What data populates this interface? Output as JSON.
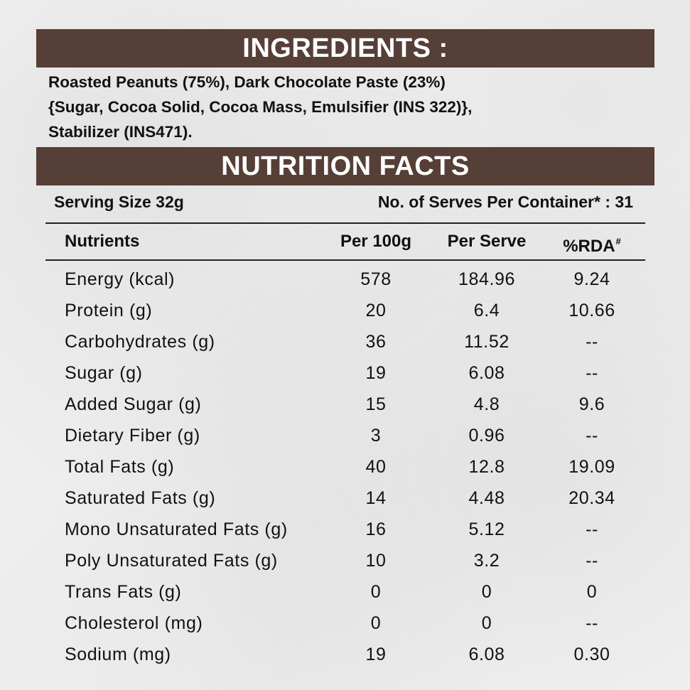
{
  "ingredients": {
    "heading": "INGREDIENTS :",
    "lines": [
      "Roasted Peanuts (75%), Dark Chocolate Paste (23%)",
      "{Sugar, Cocoa Solid, Cocoa Mass, Emulsifier (INS 322)},",
      "Stabilizer (INS471)."
    ]
  },
  "nutrition": {
    "heading": "NUTRITION FACTS",
    "serving_size": "Serving Size 32g",
    "serves_per_container": "No. of Serves Per Container* : 31",
    "columns": {
      "nutrient": "Nutrients",
      "per_100g": "Per 100g",
      "per_serve": "Per Serve",
      "rda": "%RDA",
      "rda_mark": "#"
    },
    "rows": [
      {
        "name": "Energy (kcal)",
        "per_100g": "578",
        "per_serve": "184.96",
        "rda": "9.24"
      },
      {
        "name": "Protein (g)",
        "per_100g": "20",
        "per_serve": "6.4",
        "rda": "10.66"
      },
      {
        "name": "Carbohydrates (g)",
        "per_100g": "36",
        "per_serve": "11.52",
        "rda": "--"
      },
      {
        "name": "Sugar (g)",
        "per_100g": "19",
        "per_serve": "6.08",
        "rda": "--"
      },
      {
        "name": "Added Sugar (g)",
        "per_100g": "15",
        "per_serve": "4.8",
        "rda": "9.6"
      },
      {
        "name": "Dietary Fiber (g)",
        "per_100g": "3",
        "per_serve": "0.96",
        "rda": "--"
      },
      {
        "name": "Total Fats (g)",
        "per_100g": "40",
        "per_serve": "12.8",
        "rda": "19.09"
      },
      {
        "name": "Saturated Fats (g)",
        "per_100g": "14",
        "per_serve": "4.48",
        "rda": "20.34"
      },
      {
        "name": "Mono Unsaturated Fats (g)",
        "per_100g": "16",
        "per_serve": "5.12",
        "rda": "--"
      },
      {
        "name": "Poly Unsaturated Fats (g)",
        "per_100g": "10",
        "per_serve": "3.2",
        "rda": "--"
      },
      {
        "name": "Trans Fats (g)",
        "per_100g": "0",
        "per_serve": "0",
        "rda": "0"
      },
      {
        "name": "Cholesterol (mg)",
        "per_100g": "0",
        "per_serve": "0",
        "rda": "--"
      },
      {
        "name": "Sodium (mg)",
        "per_100g": "19",
        "per_serve": "6.08",
        "rda": "0.30"
      }
    ]
  },
  "colors": {
    "banner_bg": "#553f37",
    "banner_text": "#ffffff",
    "text": "#111111"
  }
}
